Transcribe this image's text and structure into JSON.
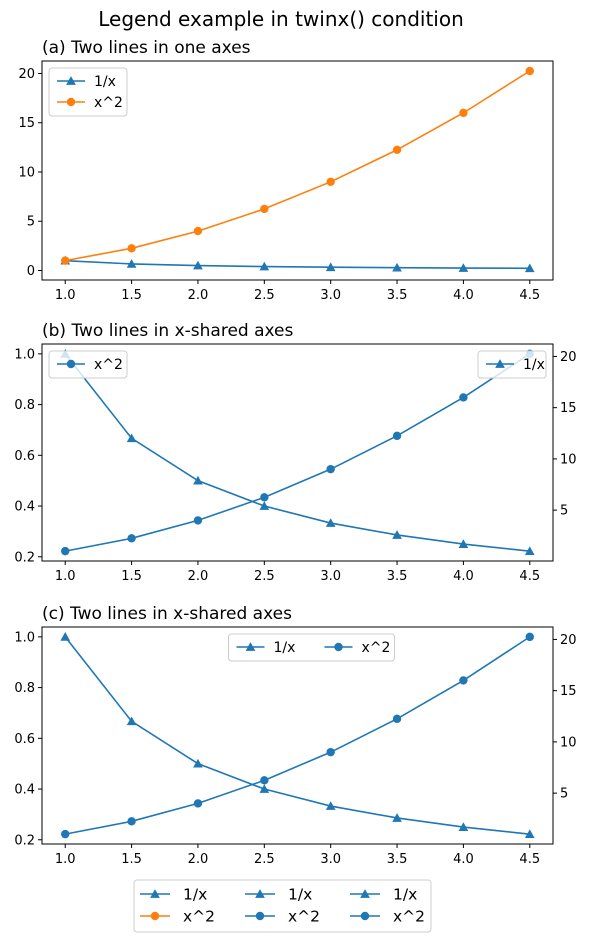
{
  "figure": {
    "suptitle": "Legend example in twinx() condition",
    "colors": {
      "c0": "#1f77b4",
      "c1": "#ff7f0e"
    }
  },
  "chart_data": [
    {
      "type": "line",
      "title": "(a) Two lines in one axes",
      "xlim": [
        0.825,
        4.675
      ],
      "ylim": [
        -0.965,
        21.265
      ],
      "xticks": [
        1.0,
        1.5,
        2.0,
        2.5,
        3.0,
        3.5,
        4.0,
        4.5
      ],
      "yticks": [
        0,
        5,
        10,
        15,
        20
      ],
      "x": [
        1.0,
        1.5,
        2.0,
        2.5,
        3.0,
        3.5,
        4.0,
        4.5
      ],
      "series": [
        {
          "name": "1/x",
          "axis": "left",
          "marker": "triangle",
          "color": "#1f77b4",
          "values": [
            1.0,
            0.667,
            0.5,
            0.4,
            0.333,
            0.286,
            0.25,
            0.222
          ]
        },
        {
          "name": "x^2",
          "axis": "left",
          "marker": "circle",
          "color": "#ff7f0e",
          "values": [
            1.0,
            2.25,
            4.0,
            6.25,
            9.0,
            12.25,
            16.0,
            20.25
          ]
        }
      ],
      "legends": [
        {
          "placement": "upper-left",
          "entries": [
            "1/x",
            "x^2"
          ],
          "ncol": 1
        }
      ]
    },
    {
      "type": "line",
      "title": "(b) Two lines in x-shared axes",
      "xlim": [
        0.825,
        4.675
      ],
      "ylim": [
        0.1833,
        1.0389
      ],
      "y2lim": [
        0.0375,
        21.2125
      ],
      "xticks": [
        1.0,
        1.5,
        2.0,
        2.5,
        3.0,
        3.5,
        4.0,
        4.5
      ],
      "yticks": [
        0.2,
        0.4,
        0.6,
        0.8,
        1.0
      ],
      "y2ticks": [
        5,
        10,
        15,
        20
      ],
      "x": [
        1.0,
        1.5,
        2.0,
        2.5,
        3.0,
        3.5,
        4.0,
        4.5
      ],
      "series": [
        {
          "name": "1/x",
          "axis": "left",
          "marker": "triangle",
          "color": "#1f77b4",
          "values": [
            1.0,
            0.667,
            0.5,
            0.4,
            0.333,
            0.286,
            0.25,
            0.222
          ]
        },
        {
          "name": "x^2",
          "axis": "right",
          "marker": "circle",
          "color": "#1f77b4",
          "values": [
            1.0,
            2.25,
            4.0,
            6.25,
            9.0,
            12.25,
            16.0,
            20.25
          ]
        }
      ],
      "legends": [
        {
          "placement": "upper-left",
          "entries": [
            "x^2"
          ],
          "ncol": 1
        },
        {
          "placement": "upper-right",
          "entries": [
            "1/x"
          ],
          "ncol": 1
        }
      ]
    },
    {
      "type": "line",
      "title": "(c) Two lines in x-shared axes",
      "xlim": [
        0.825,
        4.675
      ],
      "ylim": [
        0.1833,
        1.0389
      ],
      "y2lim": [
        0.0375,
        21.2125
      ],
      "xticks": [
        1.0,
        1.5,
        2.0,
        2.5,
        3.0,
        3.5,
        4.0,
        4.5
      ],
      "yticks": [
        0.2,
        0.4,
        0.6,
        0.8,
        1.0
      ],
      "y2ticks": [
        5,
        10,
        15,
        20
      ],
      "x": [
        1.0,
        1.5,
        2.0,
        2.5,
        3.0,
        3.5,
        4.0,
        4.5
      ],
      "series": [
        {
          "name": "1/x",
          "axis": "left",
          "marker": "triangle",
          "color": "#1f77b4",
          "values": [
            1.0,
            0.667,
            0.5,
            0.4,
            0.333,
            0.286,
            0.25,
            0.222
          ]
        },
        {
          "name": "x^2",
          "axis": "right",
          "marker": "circle",
          "color": "#1f77b4",
          "values": [
            1.0,
            2.25,
            4.0,
            6.25,
            9.0,
            12.25,
            16.0,
            20.25
          ]
        }
      ],
      "legends": [
        {
          "placement": "upper-center",
          "entries": [
            "1/x",
            "x^2"
          ],
          "ncol": 2
        }
      ]
    }
  ],
  "figure_legend": {
    "placement": "lower-center",
    "ncol": 3,
    "entries": [
      {
        "name": "1/x",
        "marker": "triangle",
        "color": "#1f77b4"
      },
      {
        "name": "x^2",
        "marker": "circle",
        "color": "#ff7f0e"
      },
      {
        "name": "1/x",
        "marker": "triangle",
        "color": "#1f77b4"
      },
      {
        "name": "x^2",
        "marker": "circle",
        "color": "#1f77b4"
      },
      {
        "name": "1/x",
        "marker": "triangle",
        "color": "#1f77b4"
      },
      {
        "name": "x^2",
        "marker": "circle",
        "color": "#1f77b4"
      }
    ]
  }
}
